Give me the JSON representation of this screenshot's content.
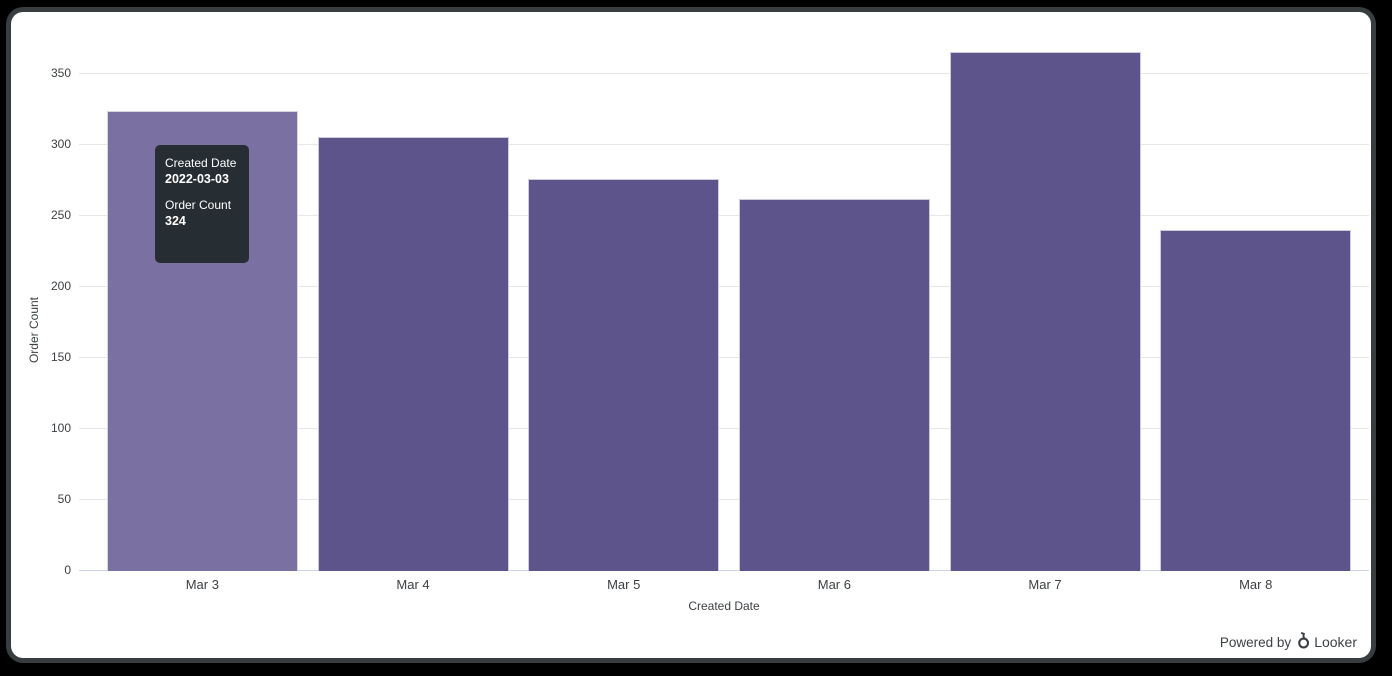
{
  "chart_data": {
    "type": "bar",
    "title": "",
    "categories": [
      "Mar 3",
      "Mar 4",
      "Mar 5",
      "Mar 6",
      "Mar 7",
      "Mar 8"
    ],
    "values": [
      324,
      306,
      276,
      262,
      366,
      240
    ],
    "xlabel": "Created Date",
    "ylabel": "Order Count",
    "ylim": [
      0,
      384
    ],
    "yticks": [
      0,
      50,
      100,
      150,
      200,
      250,
      300,
      350
    ],
    "grid": true,
    "legend": "none",
    "bar_color": "#5d548b",
    "hover_bar_color": "#7b70a2",
    "bar_border_color": "#ffffff",
    "gridline_color": "#e6e6e6",
    "axis_line_color": "#ccd6eb",
    "hovered_index": 0
  },
  "tooltip": {
    "dimension_label": "Created Date",
    "dimension_value": "2022-03-03",
    "measure_label": "Order Count",
    "measure_value": "324",
    "bg_color": "#262d33"
  },
  "footer": {
    "powered_by": "Powered by",
    "brand": "Looker"
  }
}
